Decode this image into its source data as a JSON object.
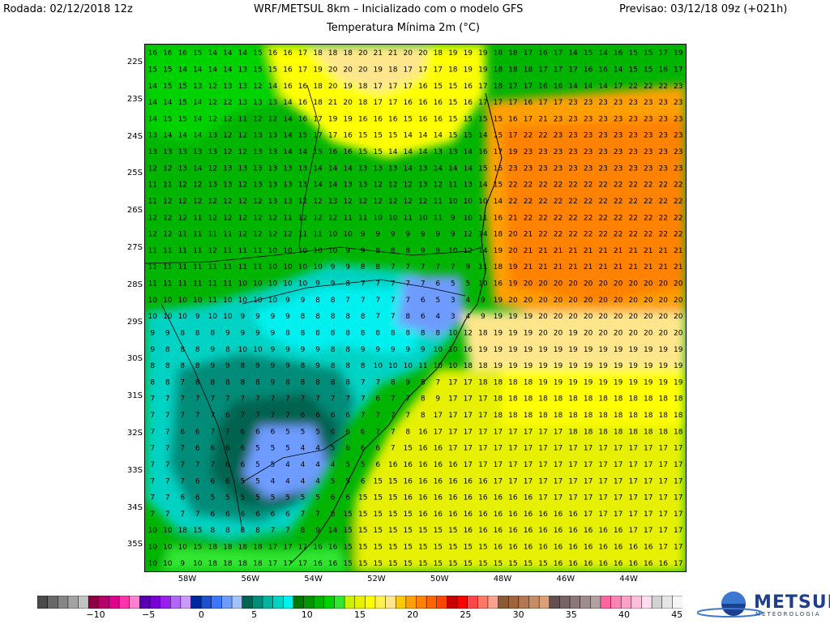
{
  "header": {
    "run": "Rodada: 02/12/2018 12z",
    "model": "WRF/METSUL 8km – Inicializado com o modelo GFS",
    "forecast": "Previsao: 03/12/18 09z (+021h)",
    "variable": "Temperatura Mínima 2m (°C)"
  },
  "map": {
    "lat_labels": [
      "22S",
      "23S",
      "24S",
      "25S",
      "26S",
      "27S",
      "28S",
      "29S",
      "30S",
      "31S",
      "32S",
      "33S",
      "34S",
      "35S"
    ],
    "lon_labels": [
      "58W",
      "56W",
      "54W",
      "52W",
      "50W",
      "48W",
      "46W",
      "44W"
    ],
    "sample_grid": [
      "16 16 16 15 14 14 14 15 16 16 17 18 18 18 20 21 21 20 20 18 19 19 19 18 18 17 16 17 14 15 14 16 15 15 17 19",
      "15 15 14 14 14 14 13 15 15 16 17 19 20 20 20 19 18 17 17 17 18 19 19 18 18 18 17 17 17 16 16 14 15 15 16 17",
      "14 15 15 13 12 13 13 12 14 16 16 18 20 19 18 17 17 17 16 15 15 16 17 18 17 17 16 16 14 14 14 17 22 22 22 23",
      "14 14 15 14 12 12 13 13 13 14 16 18 21 20 18 17 17 16 16 16 15 16 17 17 17 16 17 17 23 23 23 23 23 23 23 23",
      "14 15 15 14 12 12 11 12 12 14 16 17 19 19 16 16 16 15 16 16 15 15 15 15 16 17 21 23 23 23 23 23 23 23 23 23",
      "13 14 14 14 13 12 12 13 13 14 15 17 17 16 15 15 15 14 14 14 15 15 14 15 17 22 22 23 23 23 23 23 23 23 23 23",
      "13 13 13 13 13 12 12 13 13 14 14 15 16 16 15 15 14 14 14 13 13 14 16 17 19 23 23 23 23 23 23 23 23 23 23 23",
      "12 12 13 14 12 13 13 13 13 13 13 14 14 14 13 13 13 14 13 14 14 14 15 16 23 23 23 23 23 23 23 23 23 23 23 23",
      "11 11 12 12 13 13 12 13 13 13 13 14 14 13 13 12 12 12 13 12 11 13 14 15 22 22 22 22 22 22 22 22 22 22 22 22",
      "11 12 12 12 12 12 12 12 13 13 12 12 13 12 12 12 12 12 12 11 10 10 10 14 22 22 22 22 22 22 22 22 22 22 22 22",
      "12 12 12 11 12 12 12 12 12 11 12 12 12 11 11 10 10 11 10 11 9 10 11 16 21 22 22 22 22 22 22 22 22 22 22 22",
      "12 12 11 11 11 11 12 12 12 12 11 11 10 10 9 9 9 9 9 9 9 12 14 18 20 21 22 22 22 22 22 22 22 22 22 22",
      "11 11 11 11 12 11 11 11 10 10 10 10 10 9 9 8 8 8 9 9 10 12 14 19 20 21 21 21 21 21 21 21 21 21 21 21",
      "11 11 11 11 11 11 11 11 10 10 10 10 9 9 8 8 7 7 7 7 7 9 11 18 19 21 21 21 21 21 21 21 21 21 21 21",
      "11 11 11 11 11 11 10 10 10 10 10 9 9 8 7 7 7 7 7 6 5 5 10 16 19 20 20 20 20 20 20 20 20 20 20 20",
      "10 10 10 10 11 10 10 10 10 9 9 8 8 7 7 7 7 7 6 5 3 4 9 19 20 20 20 20 20 20 20 20 20 20 20 20",
      "10 10 10 9 10 10 9 9 9 9 8 8 8 8 8 7 7 8 6 4 3 4 9 19 19 19 20 20 20 20 20 20 20 20 20 20",
      "9 9 8 8 8 9 9 9 9 8 8 8 8 8 8 8 8 8 8 8 10 12 18 19 19 19 20 20 19 20 20 20 20 20 20 20",
      "9 8 8 8 9 8 10 10 9 9 9 9 8 8 9 9 9 9 9 10 10 16 19 19 19 19 19 19 19 19 19 19 19 19 19 19",
      "8 8 8 8 9 9 8 9 9 9 8 9 8 8 8 10 10 10 11 10 10 18 18 19 19 19 19 19 19 19 19 19 19 19 19 19",
      "8 8 7 8 8 8 8 8 9 8 8 8 8 8 7 7 8 9 8 7 17 17 18 18 18 18 19 19 19 19 19 19 19 19 19 19",
      "7 7 7 7 7 7 7 7 7 7 7 7 7 7 7 6 7 7 8 9 17 17 17 18 18 18 18 18 18 18 18 18 18 18 18 18",
      "7 7 7 7 7 6 7 7 7 7 6 6 6 6 7 7 7 7 8 17 17 17 17 18 18 18 18 18 18 18 18 18 18 18 18 18",
      "7 7 6 6 7 7 6 6 6 5 5 5 6 6 6 7 7 8 16 17 17 17 17 17 17 17 17 17 18 18 18 18 18 18 18 18",
      "7 7 7 6 6 6 6 5 5 5 4 4 5 6 6 6 7 15 16 16 17 17 17 17 17 17 17 17 17 17 17 17 17 17 17 17",
      "7 7 7 7 7 6 6 5 5 4 4 4 4 5 5 6 16 16 16 16 16 17 17 17 17 17 17 17 17 17 17 17 17 17 17 17",
      "7 7 7 6 6 6 5 5 4 4 4 4 5 5 6 15 15 16 16 16 16 16 16 17 17 17 17 17 17 17 17 17 17 17 17 17",
      "7 7 6 6 5 5 5 5 5 5 5 5 6 6 15 15 15 16 16 16 16 16 16 16 16 16 17 17 17 17 17 17 17 17 17 17",
      "7 7 7 7 6 6 6 6 6 6 7 7 8 15 15 15 15 15 16 16 16 16 16 16 16 16 16 16 16 17 17 17 17 17 17 17",
      "10 10 18 15 8 8 8 8 7 7 8 9 14 15 15 15 15 15 15 15 15 16 16 16 16 16 16 16 16 16 16 16 17 17 17 17",
      "10 10 10 15 18 18 18 18 17 17 17 16 16 15 15 15 15 15 15 15 15 15 15 16 16 16 16 16 16 16 16 16 16 16 17 17",
      "10 10 9 10 18 18 18 18 17 17 17 16 16 15 15 15 15 15 15 15 15 15 15 15 15 15 15 16 16 16 16 16 16 16 16 17"
    ]
  },
  "colorbar": {
    "labels": [
      "−10",
      "−5",
      "0",
      "5",
      "10",
      "15",
      "20",
      "25",
      "30",
      "35",
      "40",
      "45"
    ],
    "colors": [
      "#4a4a4a",
      "#686868",
      "#858585",
      "#a3a3a3",
      "#c2c2c2",
      "#8c0044",
      "#b8006c",
      "#e0008e",
      "#ff33aa",
      "#ff80cc",
      "#5a00b4",
      "#7800d2",
      "#9a1ef0",
      "#b464ff",
      "#cc99ff",
      "#0028a0",
      "#1e50d2",
      "#3c78ff",
      "#6e9bff",
      "#a0c3ff",
      "#006450",
      "#008c78",
      "#00b4a0",
      "#00d2c3",
      "#00f0f0",
      "#007800",
      "#009600",
      "#00b400",
      "#00d200",
      "#32e632",
      "#cdf000",
      "#e6f000",
      "#ffff00",
      "#fff050",
      "#ffe68c",
      "#ffc800",
      "#ffa000",
      "#ff8200",
      "#ff6400",
      "#ff4600",
      "#c80000",
      "#ff0000",
      "#ff4646",
      "#ff7864",
      "#ffa08c",
      "#8c5a32",
      "#a0643c",
      "#b47850",
      "#c88c64",
      "#dca078",
      "#645050",
      "#786464",
      "#8c7878",
      "#a08c8c",
      "#b4a0a0",
      "#ff64a0",
      "#ff82b4",
      "#ffa0c8",
      "#ffbedc",
      "#ffdcf0",
      "#d2d2d2",
      "#e6e6e6",
      "#f5f5f5"
    ]
  },
  "logo": {
    "brand": "METSUL",
    "sub": "METEOROLOGIA"
  }
}
